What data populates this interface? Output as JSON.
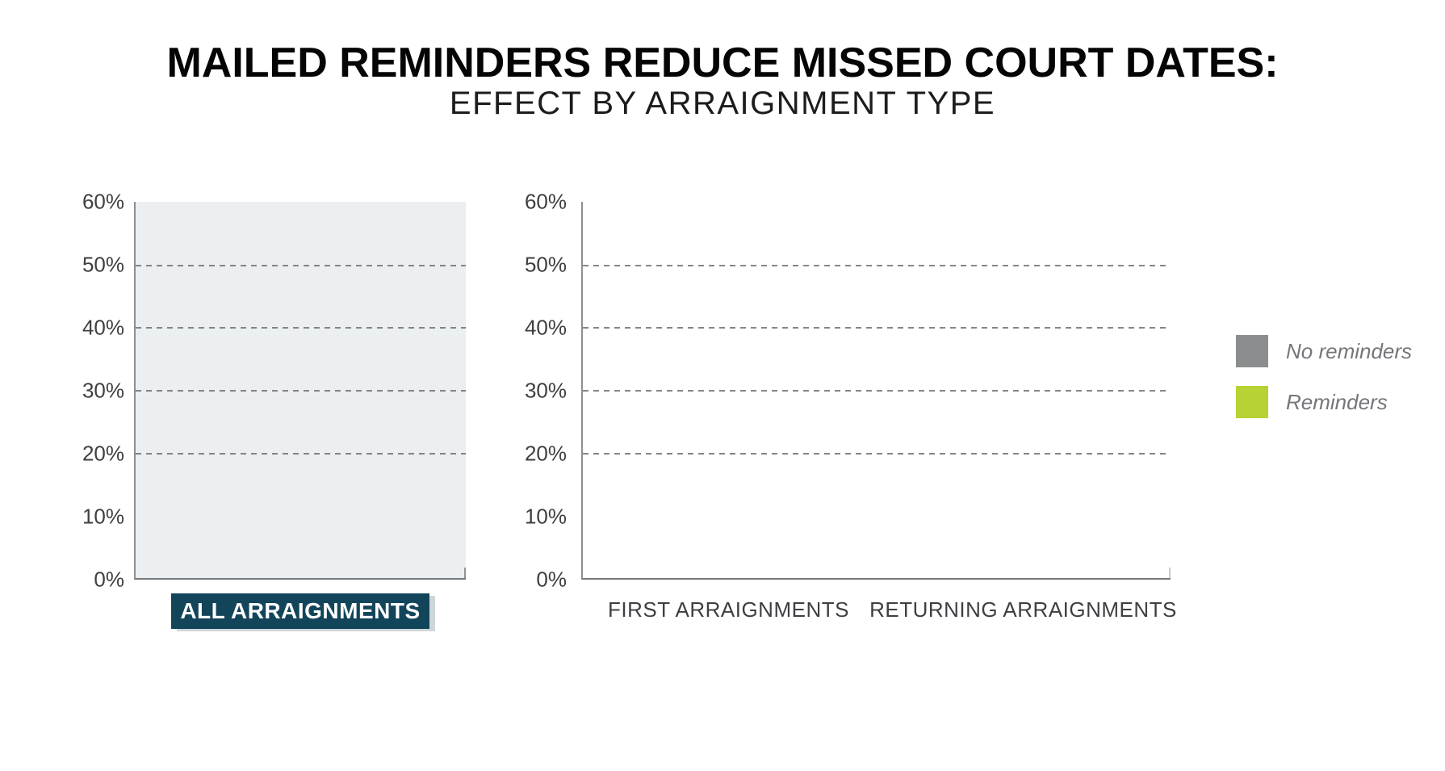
{
  "header": {
    "title": "MAILED REMINDERS REDUCE MISSED COURT DATES:",
    "subtitle": "EFFECT BY ARRAIGNMENT TYPE"
  },
  "left_chart": {
    "yticks": [
      "60%",
      "50%",
      "40%",
      "30%",
      "20%",
      "10%",
      "0%"
    ],
    "category_label": "ALL ARRAIGNMENTS",
    "plot_background": "#ebeff2",
    "label_box_color": "#13455a",
    "label_text_color": "#ffffff"
  },
  "right_chart": {
    "yticks": [
      "60%",
      "50%",
      "40%",
      "30%",
      "20%",
      "10%",
      "0%"
    ],
    "x_labels": [
      "FIRST ARRAIGNMENTS",
      "RETURNING ARRAIGNMENTS"
    ]
  },
  "legend": {
    "items": [
      {
        "label": "No reminders",
        "color": "#8a8c8e"
      },
      {
        "label": "Reminders",
        "color": "#b5d334"
      }
    ]
  },
  "colors": {
    "axis_line": "#8e9093",
    "gridline": "#6f7174",
    "tick_text": "#3e3f42"
  },
  "chart_data": [
    {
      "type": "bar",
      "panel": "left",
      "title": "ALL ARRAIGNMENTS",
      "categories": [
        "ALL ARRAIGNMENTS"
      ],
      "series": [
        {
          "name": "No reminders",
          "values": []
        },
        {
          "name": "Reminders",
          "values": []
        }
      ],
      "xlabel": "",
      "ylabel": "",
      "ylim": [
        0,
        60
      ],
      "ytick_values_percent": [
        0,
        10,
        20,
        30,
        40,
        50,
        60
      ],
      "gridlines_at_percent": [
        20,
        30,
        40,
        50
      ],
      "grid_style": "dashed",
      "plot_area_shaded": true,
      "bars_rendered": false,
      "note": "Axes only - no bar values are drawn in this frame"
    },
    {
      "type": "bar",
      "panel": "right",
      "title": "",
      "categories": [
        "FIRST ARRAIGNMENTS",
        "RETURNING ARRAIGNMENTS"
      ],
      "series": [
        {
          "name": "No reminders",
          "values": []
        },
        {
          "name": "Reminders",
          "values": []
        }
      ],
      "xlabel": "",
      "ylabel": "",
      "ylim": [
        0,
        60
      ],
      "ytick_values_percent": [
        0,
        10,
        20,
        30,
        40,
        50,
        60
      ],
      "gridlines_at_percent": [
        20,
        30,
        40,
        50
      ],
      "grid_style": "dashed",
      "plot_area_shaded": false,
      "bars_rendered": false,
      "legend_position": "right",
      "note": "Axes only - no bar values are drawn in this frame"
    }
  ]
}
